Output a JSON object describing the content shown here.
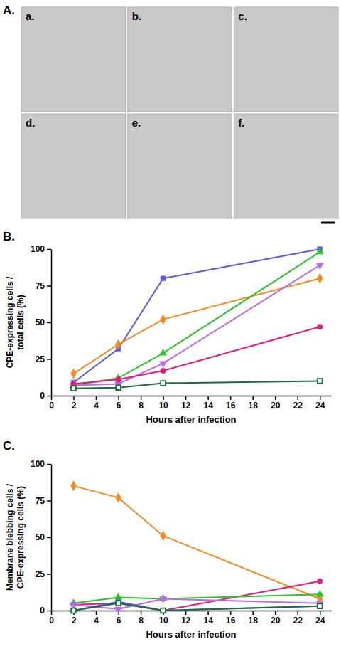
{
  "panel_a": {
    "label": "A.",
    "images": [
      "a.",
      "b.",
      "c.",
      "d.",
      "e.",
      "f."
    ]
  },
  "chart_data": [
    {
      "panel_label": "B.",
      "type": "line",
      "x_label": "Hours after infection",
      "y_label": "CPE-expressing cells / total cells (%)",
      "x": [
        2,
        6,
        10,
        24
      ],
      "xlim": [
        0,
        25
      ],
      "xticks": [
        0,
        2,
        4,
        6,
        8,
        10,
        12,
        14,
        16,
        18,
        20,
        22,
        24
      ],
      "ylim": [
        0,
        100
      ],
      "yticks": [
        0,
        25,
        50,
        75,
        100
      ],
      "grid": false,
      "series": [
        {
          "color": "#5a5ae0",
          "marker": "square",
          "values": [
            9,
            32,
            80,
            100
          ]
        },
        {
          "color": "#f58a1f",
          "marker": "diamond",
          "values": [
            15,
            35,
            52,
            80
          ]
        },
        {
          "color": "#2cc22c",
          "marker": "triangle",
          "values": [
            7,
            12,
            29,
            98
          ]
        },
        {
          "color": "#b86ae8",
          "marker": "triangle-down",
          "values": [
            7,
            8,
            22,
            89
          ]
        },
        {
          "color": "#e8197c",
          "marker": "circle",
          "values": [
            8,
            11,
            17,
            47
          ]
        },
        {
          "color": "#1b6e3c",
          "marker": "square-open",
          "values": [
            5,
            5.5,
            8.5,
            10
          ]
        }
      ]
    },
    {
      "panel_label": "C.",
      "type": "line",
      "x_label": "Hours after infection",
      "y_label": "Membrane blebbing cells / CPE-expressing cells (%)",
      "x": [
        2,
        6,
        10,
        24
      ],
      "xlim": [
        0,
        25
      ],
      "xticks": [
        0,
        2,
        4,
        6,
        8,
        10,
        12,
        14,
        16,
        18,
        20,
        22,
        24
      ],
      "ylim": [
        0,
        100
      ],
      "yticks": [
        0,
        25,
        50,
        75,
        100
      ],
      "grid": false,
      "series": [
        {
          "color": "#f58a1f",
          "marker": "diamond",
          "values": [
            85,
            77,
            51,
            8
          ]
        },
        {
          "color": "#e8197c",
          "marker": "circle",
          "values": [
            4,
            5,
            0,
            20
          ]
        },
        {
          "color": "#2cc22c",
          "marker": "triangle",
          "values": [
            5,
            9,
            8,
            11
          ]
        },
        {
          "color": "#b86ae8",
          "marker": "triangle-down",
          "values": [
            4,
            1,
            8,
            5
          ]
        },
        {
          "color": "#5a5ae0",
          "marker": "square",
          "values": [
            0,
            6,
            0,
            3
          ]
        },
        {
          "color": "#1b6e3c",
          "marker": "square-open",
          "values": [
            0,
            5,
            0,
            3
          ]
        }
      ]
    }
  ]
}
